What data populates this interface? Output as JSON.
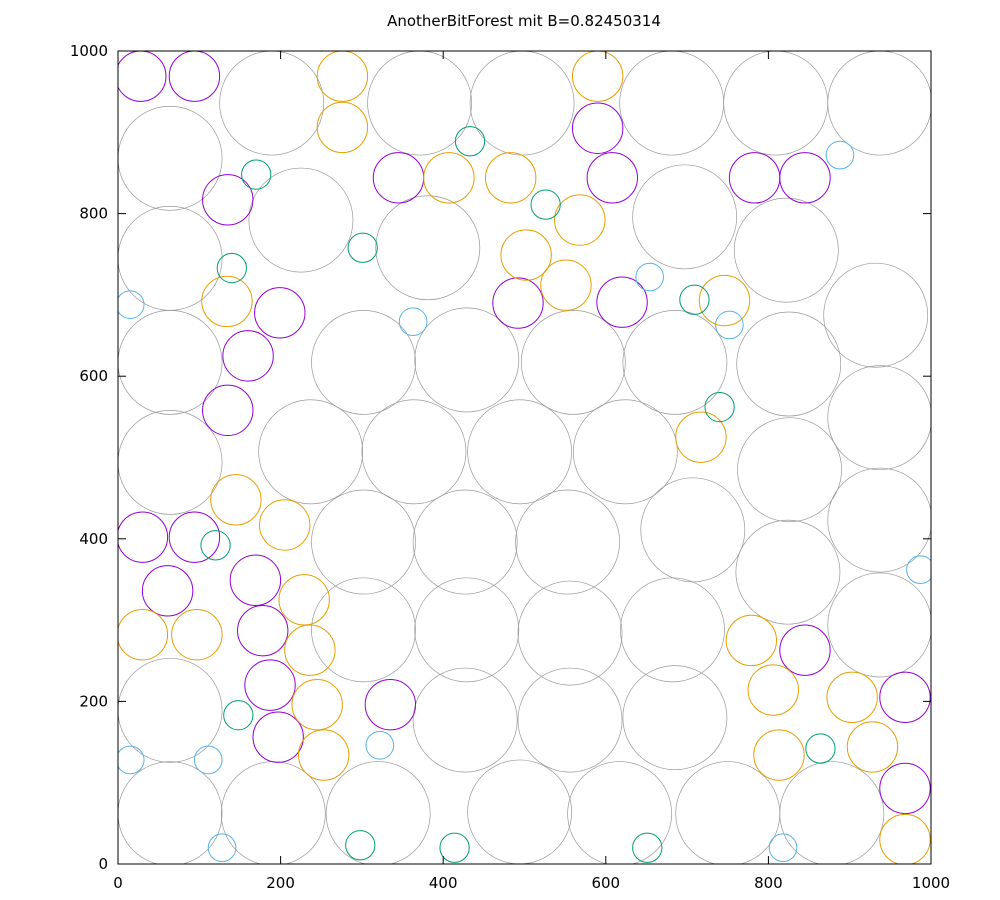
{
  "chart_data": {
    "type": "circles",
    "title": "AnotherBitForest mit B=0.82450314",
    "xlim": [
      0,
      1000
    ],
    "ylim": [
      0,
      1000
    ],
    "xticks": [
      0,
      200,
      400,
      600,
      800,
      1000
    ],
    "yticks": [
      0,
      200,
      400,
      600,
      800,
      1000
    ],
    "series": [
      {
        "color": "#999999",
        "x": [
          64,
          189,
          371,
          497,
          681,
          809,
          937,
          64,
          225,
          381,
          697,
          822,
          932,
          64,
          302,
          429,
          560,
          685,
          825,
          937,
          64,
          237,
          364,
          494,
          624,
          826,
          707,
          302,
          427,
          553,
          824,
          937,
          937,
          64,
          302,
          429,
          556,
          682,
          427,
          556,
          685,
          64,
          191,
          320,
          494,
          617,
          750,
          878
        ],
        "y": [
          868,
          936,
          936,
          936,
          936,
          936,
          936,
          745,
          792,
          758,
          796,
          755,
          675,
          617,
          617,
          620,
          617,
          617,
          615,
          549,
          494,
          507,
          507,
          507,
          507,
          485,
          411,
          396,
          396,
          396,
          359,
          423,
          294,
          189,
          288,
          288,
          284,
          288,
          177,
          177,
          180,
          62,
          62,
          62,
          64,
          62,
          62,
          62
        ],
        "r": [
          64,
          64,
          64,
          64,
          64,
          64,
          64,
          64,
          64,
          64,
          64,
          64,
          64,
          64,
          64,
          64,
          64,
          64,
          64,
          64,
          64,
          64,
          64,
          64,
          64,
          64,
          64,
          64,
          64,
          64,
          64,
          64,
          64,
          64,
          64,
          64,
          64,
          64,
          64,
          64,
          64,
          64,
          64,
          64,
          64,
          64,
          64,
          64
        ]
      },
      {
        "color": "#9400d3",
        "x": [
          135,
          199,
          160,
          135,
          30,
          94,
          61,
          169,
          178,
          187,
          197,
          335,
          345,
          590,
          608,
          492,
          620,
          783,
          845,
          845,
          968,
          968,
          28,
          94
        ],
        "y": [
          817,
          678,
          625,
          558,
          402,
          402,
          336,
          349,
          287,
          220,
          156,
          196,
          844,
          905,
          844,
          690,
          691,
          844,
          844,
          263,
          205,
          93,
          969,
          969
        ],
        "r": [
          31,
          31,
          31,
          31,
          31,
          31,
          31,
          31,
          31,
          31,
          31,
          31,
          31,
          31,
          31,
          31,
          31,
          31,
          31,
          31,
          31,
          31,
          31,
          31
        ]
      },
      {
        "color": "#e69f00",
        "x": [
          276,
          276,
          590,
          407,
          483,
          568,
          551,
          134,
          145,
          205,
          229,
          97,
          30,
          236,
          245,
          253,
          746,
          717,
          779,
          806,
          813,
          903,
          928,
          968,
          502
        ],
        "y": [
          969,
          906,
          969,
          844,
          844,
          792,
          712,
          692,
          448,
          417,
          325,
          282,
          282,
          263,
          196,
          134,
          693,
          525,
          275,
          214,
          134,
          205,
          144,
          30,
          749
        ],
        "r": [
          31,
          31,
          31,
          31,
          31,
          31,
          31,
          31,
          31,
          31,
          31,
          31,
          31,
          31,
          31,
          31,
          31,
          31,
          31,
          31,
          31,
          31,
          31,
          31,
          31
        ]
      },
      {
        "color": "#009e73",
        "x": [
          170,
          301,
          526,
          740,
          140,
          120,
          148,
          864,
          709,
          433,
          298,
          414,
          651
        ],
        "y": [
          848,
          758,
          811,
          562,
          733,
          392,
          183,
          142,
          694,
          889,
          23,
          20,
          20
        ],
        "r": [
          18,
          18,
          18,
          18,
          18,
          18,
          18,
          18,
          18,
          18,
          18,
          18,
          18
        ]
      },
      {
        "color": "#56b4e9",
        "x": [
          15,
          363,
          752,
          888,
          987,
          15,
          111,
          322,
          818,
          128,
          654
        ],
        "y": [
          688,
          667,
          663,
          872,
          362,
          128,
          128,
          146,
          20,
          20,
          722
        ],
        "r": [
          17,
          17,
          17,
          17,
          17,
          17,
          17,
          17,
          17,
          17,
          17
        ]
      }
    ]
  }
}
